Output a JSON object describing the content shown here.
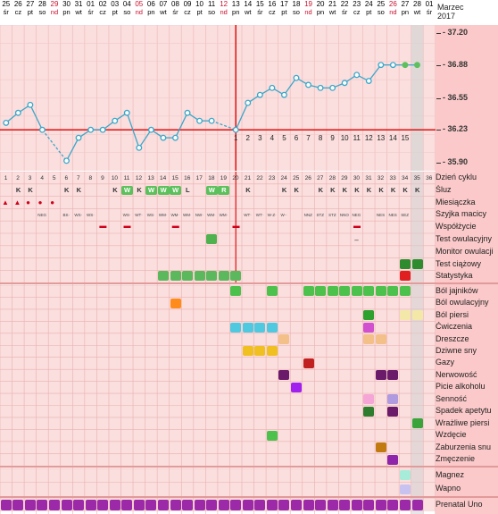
{
  "header": {
    "month_label": "Marzec",
    "year_label": "2017",
    "days": [
      {
        "n": "25",
        "d": "śr",
        "red": false
      },
      {
        "n": "26",
        "d": "cz",
        "red": false
      },
      {
        "n": "27",
        "d": "pt",
        "red": false
      },
      {
        "n": "28",
        "d": "so",
        "red": false
      },
      {
        "n": "29",
        "d": "nd",
        "red": true
      },
      {
        "n": "30",
        "d": "pn",
        "red": false
      },
      {
        "n": "31",
        "d": "wt",
        "red": false
      },
      {
        "n": "01",
        "d": "śr",
        "red": false
      },
      {
        "n": "02",
        "d": "cz",
        "red": false
      },
      {
        "n": "03",
        "d": "pt",
        "red": false
      },
      {
        "n": "04",
        "d": "so",
        "red": false
      },
      {
        "n": "05",
        "d": "nd",
        "red": true
      },
      {
        "n": "06",
        "d": "pn",
        "red": false
      },
      {
        "n": "07",
        "d": "wt",
        "red": false
      },
      {
        "n": "08",
        "d": "śr",
        "red": false
      },
      {
        "n": "09",
        "d": "cz",
        "red": false
      },
      {
        "n": "10",
        "d": "pt",
        "red": false
      },
      {
        "n": "11",
        "d": "so",
        "red": false
      },
      {
        "n": "12",
        "d": "nd",
        "red": true
      },
      {
        "n": "13",
        "d": "pn",
        "red": false
      },
      {
        "n": "14",
        "d": "wt",
        "red": false
      },
      {
        "n": "15",
        "d": "śr",
        "red": false
      },
      {
        "n": "16",
        "d": "cz",
        "red": false
      },
      {
        "n": "17",
        "d": "pt",
        "red": false
      },
      {
        "n": "18",
        "d": "so",
        "red": false
      },
      {
        "n": "19",
        "d": "nd",
        "red": true
      },
      {
        "n": "20",
        "d": "pn",
        "red": false
      },
      {
        "n": "21",
        "d": "wt",
        "red": false
      },
      {
        "n": "22",
        "d": "śr",
        "red": false
      },
      {
        "n": "23",
        "d": "cz",
        "red": false
      },
      {
        "n": "24",
        "d": "pt",
        "red": false
      },
      {
        "n": "25",
        "d": "so",
        "red": false
      },
      {
        "n": "26",
        "d": "nd",
        "red": true
      },
      {
        "n": "27",
        "d": "pn",
        "red": false
      },
      {
        "n": "28",
        "d": "wt",
        "red": false
      },
      {
        "n": "01",
        "d": "śr",
        "red": false
      }
    ]
  },
  "chart_data": {
    "type": "line",
    "ylim": [
      35.82,
      37.28
    ],
    "y_ticks": [
      "37.20",
      "36.88",
      "36.55",
      "36.23",
      "35.90"
    ],
    "coverline": 36.23,
    "x": [
      1,
      2,
      3,
      4,
      5,
      6,
      7,
      8,
      9,
      10,
      11,
      12,
      13,
      14,
      15,
      16,
      17,
      18,
      19,
      20,
      21,
      22,
      23,
      24,
      25,
      26,
      27,
      28,
      29,
      30,
      31,
      32,
      33,
      34,
      35
    ],
    "values": [
      36.3,
      36.4,
      36.48,
      36.23,
      null,
      35.92,
      36.15,
      36.23,
      36.23,
      36.32,
      36.4,
      36.05,
      36.23,
      36.15,
      36.15,
      36.4,
      36.32,
      36.32,
      null,
      36.23,
      36.5,
      36.58,
      36.65,
      36.58,
      36.75,
      36.68,
      36.65,
      36.65,
      36.7,
      36.78,
      36.72,
      36.88,
      36.88,
      36.88,
      36.88
    ],
    "dashed_gaps": [
      [
        4,
        6
      ],
      [
        18,
        20
      ]
    ],
    "phase_day_labels": [
      "1",
      "2",
      "3",
      "4",
      "5",
      "6",
      "7",
      "8",
      "9",
      "10",
      "11",
      "12",
      "13",
      "14",
      "15"
    ],
    "post_ovulation_start_day": 20
  },
  "grid": {
    "cycle_days": [
      "1",
      "2",
      "3",
      "4",
      "5",
      "6",
      "7",
      "8",
      "9",
      "10",
      "11",
      "12",
      "13",
      "14",
      "15",
      "16",
      "17",
      "18",
      "19",
      "20",
      "21",
      "22",
      "23",
      "24",
      "25",
      "26",
      "27",
      "28",
      "29",
      "30",
      "31",
      "32",
      "33",
      "34",
      "35",
      "36"
    ],
    "labels_top": [
      "Dzień cyklu",
      "Śluz",
      "Miesiączka",
      "Szyjka macicy",
      "Współżycie",
      "Test owulacyjny",
      "Monitor owulacji",
      "Test ciążowy",
      "Statystyka"
    ],
    "labels_symptoms": [
      "Ból jajników",
      "Ból owulacyjny",
      "Ból piersi",
      "Ćwiczenia",
      "Dreszcze",
      "Dziwne sny",
      "Gazy",
      "Nerwowość",
      "Picie alkoholu",
      "Senność",
      "Spadek apetytu",
      "Wrażliwe piersi",
      "Wzdęcie",
      "Zaburzenia snu",
      "Zmęczenie"
    ],
    "labels_supp": [
      "Magnez",
      "Wapno"
    ],
    "labels_last": [
      "Prenatal Uno"
    ],
    "sluz": [
      null,
      "K",
      "K",
      null,
      null,
      "K",
      "K",
      null,
      null,
      "K",
      "W",
      "K",
      "W",
      "W",
      "W",
      "L",
      null,
      "W",
      "R",
      null,
      "K",
      null,
      null,
      "K",
      "K",
      null,
      "K",
      "K",
      "K",
      "K",
      "K",
      "K",
      "K",
      "K",
      "K",
      null
    ],
    "sluz_green": [
      10,
      12,
      13,
      14,
      17,
      18
    ],
    "szyjka": [
      null,
      null,
      null,
      "NEG",
      null,
      "BS·",
      "WS·",
      "WS·",
      null,
      null,
      "WS·",
      "WT·",
      "WS·",
      "WM·",
      "WM·",
      "WM·",
      "NW·",
      "WM·",
      "WM·",
      null,
      "WT·",
      "WT·",
      "W·Z·",
      "W··",
      null,
      "NNZ",
      "STZ",
      "STZ",
      "NNO",
      "NEG",
      null,
      "NES",
      "NES",
      "SEZ",
      null,
      null
    ]
  },
  "colors": {
    "accent": "#3aa7c9",
    "coverline": "#e01010",
    "post_line": "#e01010"
  }
}
